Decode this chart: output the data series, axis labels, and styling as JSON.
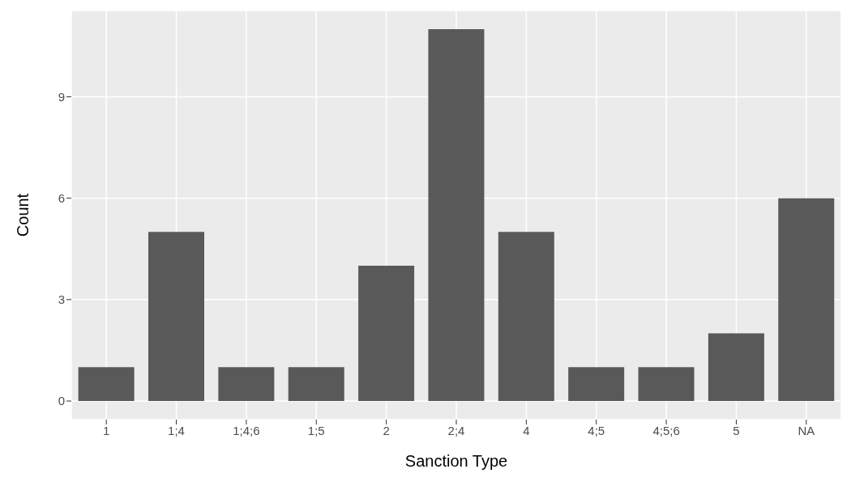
{
  "chart_data": {
    "type": "bar",
    "xlabel": "Sanction Type",
    "ylabel": "Count",
    "categories": [
      "1",
      "1;4",
      "1;4;6",
      "1;5",
      "2",
      "2;4",
      "4",
      "4;5",
      "4;5;6",
      "5",
      "NA"
    ],
    "values": [
      1,
      5,
      1,
      1,
      4,
      11,
      5,
      1,
      1,
      2,
      6
    ],
    "color": "#595959",
    "ylim": [
      -0.55,
      11.55
    ],
    "yticks": [
      0,
      3,
      6,
      9
    ],
    "grid": true
  }
}
